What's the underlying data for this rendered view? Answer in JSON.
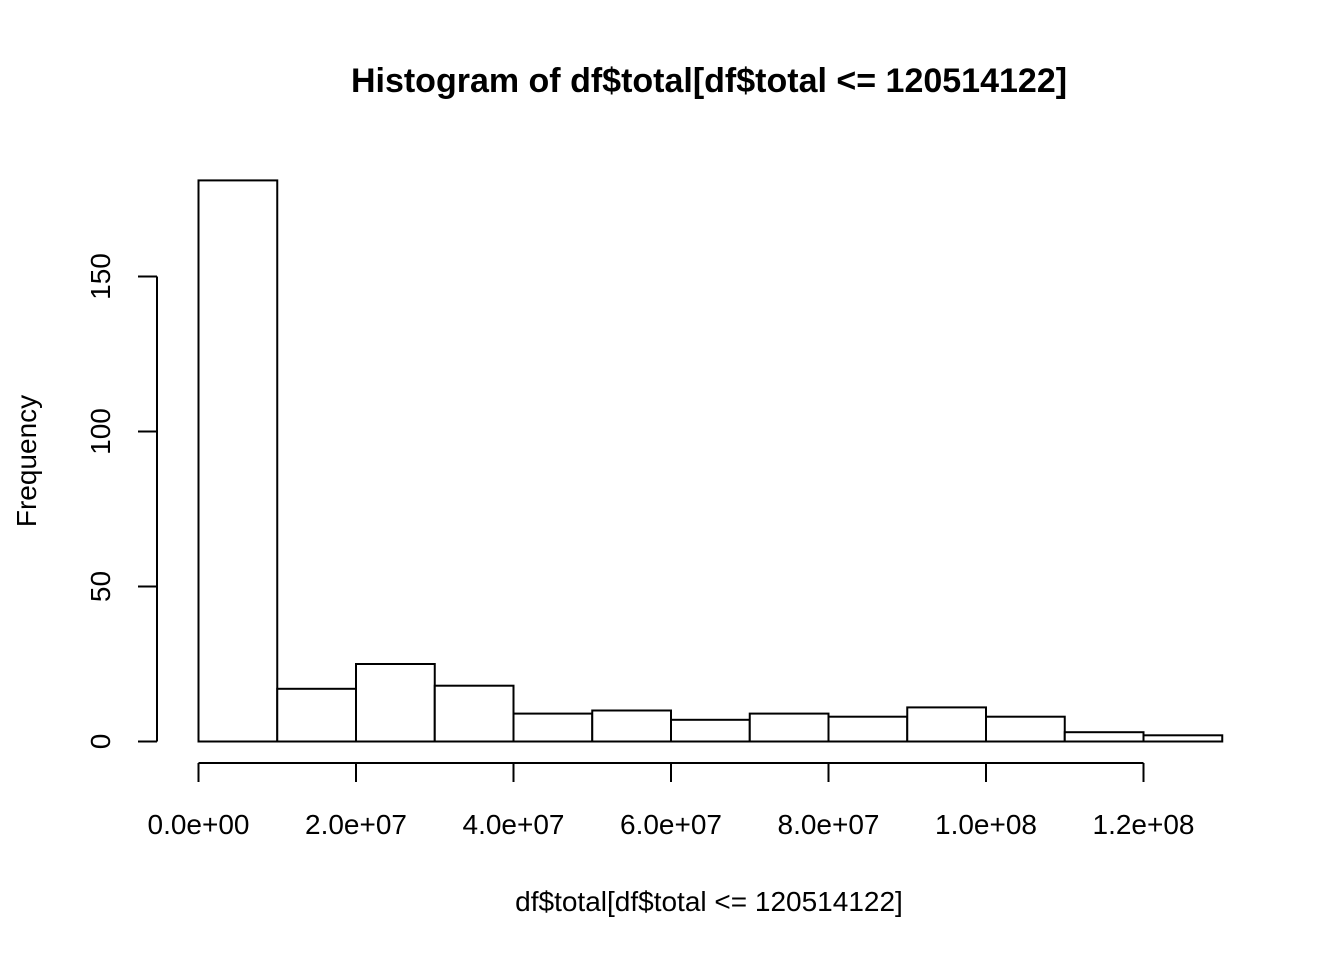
{
  "chart_data": {
    "type": "bar",
    "title": "Histogram of df$total[df$total <= 120514122]",
    "xlabel": "df$total[df$total <= 120514122]",
    "ylabel": "Frequency",
    "bin_width": 10000000,
    "bins": [
      {
        "start": 0,
        "end": 10000000,
        "count": 181
      },
      {
        "start": 10000000,
        "end": 20000000,
        "count": 17
      },
      {
        "start": 20000000,
        "end": 30000000,
        "count": 25
      },
      {
        "start": 30000000,
        "end": 40000000,
        "count": 18
      },
      {
        "start": 40000000,
        "end": 50000000,
        "count": 9
      },
      {
        "start": 50000000,
        "end": 60000000,
        "count": 10
      },
      {
        "start": 60000000,
        "end": 70000000,
        "count": 7
      },
      {
        "start": 70000000,
        "end": 80000000,
        "count": 9
      },
      {
        "start": 80000000,
        "end": 90000000,
        "count": 8
      },
      {
        "start": 90000000,
        "end": 100000000,
        "count": 11
      },
      {
        "start": 100000000,
        "end": 110000000,
        "count": 8
      },
      {
        "start": 110000000,
        "end": 120000000,
        "count": 3
      },
      {
        "start": 120000000,
        "end": 130000000,
        "count": 2
      }
    ],
    "x_ticks": [
      {
        "value": 0,
        "label": "0.0e+00"
      },
      {
        "value": 20000000,
        "label": "2.0e+07"
      },
      {
        "value": 40000000,
        "label": "4.0e+07"
      },
      {
        "value": 60000000,
        "label": "6.0e+07"
      },
      {
        "value": 80000000,
        "label": "8.0e+07"
      },
      {
        "value": 100000000,
        "label": "1.0e+08"
      },
      {
        "value": 120000000,
        "label": "1.2e+08"
      }
    ],
    "y_ticks": [
      {
        "value": 0,
        "label": "0"
      },
      {
        "value": 50,
        "label": "50"
      },
      {
        "value": 100,
        "label": "100"
      },
      {
        "value": 150,
        "label": "150"
      }
    ],
    "xlim": [
      0,
      130000000
    ],
    "ylim": [
      0,
      181
    ],
    "grid": false,
    "bar_fill": "#ffffff",
    "bar_stroke": "#000000"
  }
}
